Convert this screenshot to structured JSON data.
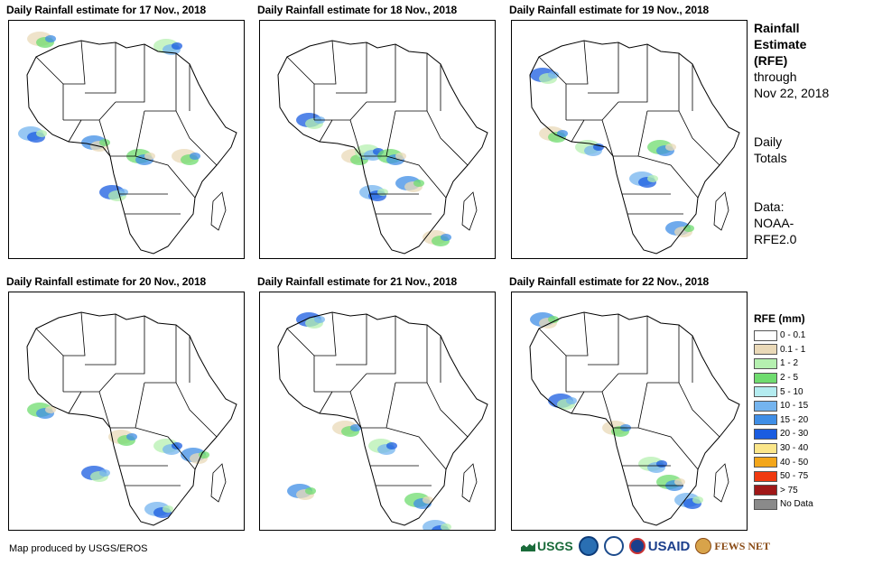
{
  "panels": [
    {
      "title": "Daily Rainfall estimate for 17 Nov., 2018"
    },
    {
      "title": "Daily Rainfall estimate for 18 Nov., 2018"
    },
    {
      "title": "Daily Rainfall estimate for 19 Nov., 2018"
    },
    {
      "title": "Daily Rainfall estimate for 20 Nov., 2018"
    },
    {
      "title": "Daily Rainfall estimate for 21 Nov., 2018"
    },
    {
      "title": "Daily Rainfall estimate for 22 Nov., 2018"
    }
  ],
  "side": {
    "heading_1": "Rainfall",
    "heading_2": "Estimate",
    "heading_3": "(RFE)",
    "through": "through",
    "date": "Nov 22, 2018",
    "daily_1": "Daily",
    "daily_2": "Totals",
    "data_1": "Data:",
    "data_2": "NOAA-",
    "data_3": "RFE2.0"
  },
  "legend": {
    "title": "RFE (mm)",
    "items": [
      {
        "label": "0 - 0.1",
        "color": "#ffffff"
      },
      {
        "label": "0.1 - 1",
        "color": "#ead9b8"
      },
      {
        "label": "1 - 2",
        "color": "#b5f0b0"
      },
      {
        "label": "2 - 5",
        "color": "#6fdc6f"
      },
      {
        "label": "5 - 10",
        "color": "#b4ecf0"
      },
      {
        "label": "10 - 15",
        "color": "#74b4ef"
      },
      {
        "label": "15 - 20",
        "color": "#3f8ee6"
      },
      {
        "label": "20 - 30",
        "color": "#1a5ce0"
      },
      {
        "label": "30 - 40",
        "color": "#fbe68a"
      },
      {
        "label": "40 - 50",
        "color": "#f3a61a"
      },
      {
        "label": "50 - 75",
        "color": "#f03a10"
      },
      {
        "label": "> 75",
        "color": "#a01818"
      },
      {
        "label": "No Data",
        "color": "#8a8a8a"
      }
    ]
  },
  "credit": "Map produced by USGS/EROS",
  "logos": {
    "usgs": "USGS",
    "noaa": "NOAA",
    "usaid": "USAID",
    "fews": "FEWS NET"
  }
}
